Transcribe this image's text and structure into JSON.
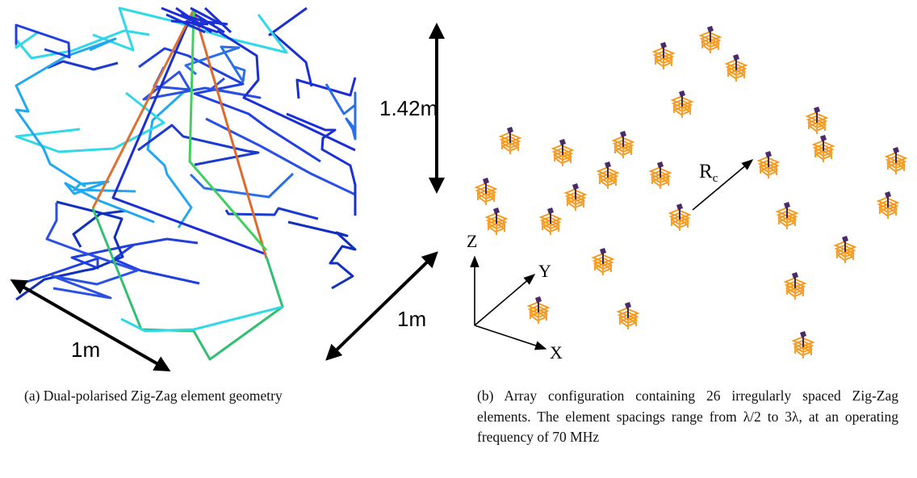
{
  "figure": {
    "left_panel": {
      "height_label": "1.42m",
      "width_label_front": "1m",
      "width_label_side": "1m",
      "caption": "(a) Dual-polarised Zig-Zag element geometry"
    },
    "right_panel": {
      "axis_z": "Z",
      "axis_y": "Y",
      "axis_x": "X",
      "radius_label": {
        "main": "R",
        "sub": "c"
      },
      "caption": "(b) Array configuration containing 26 irregularly spaced Zig-Zag elements. The element spacings range from λ/2 to 3λ, at an operating frequency of 70 MHz"
    }
  }
}
